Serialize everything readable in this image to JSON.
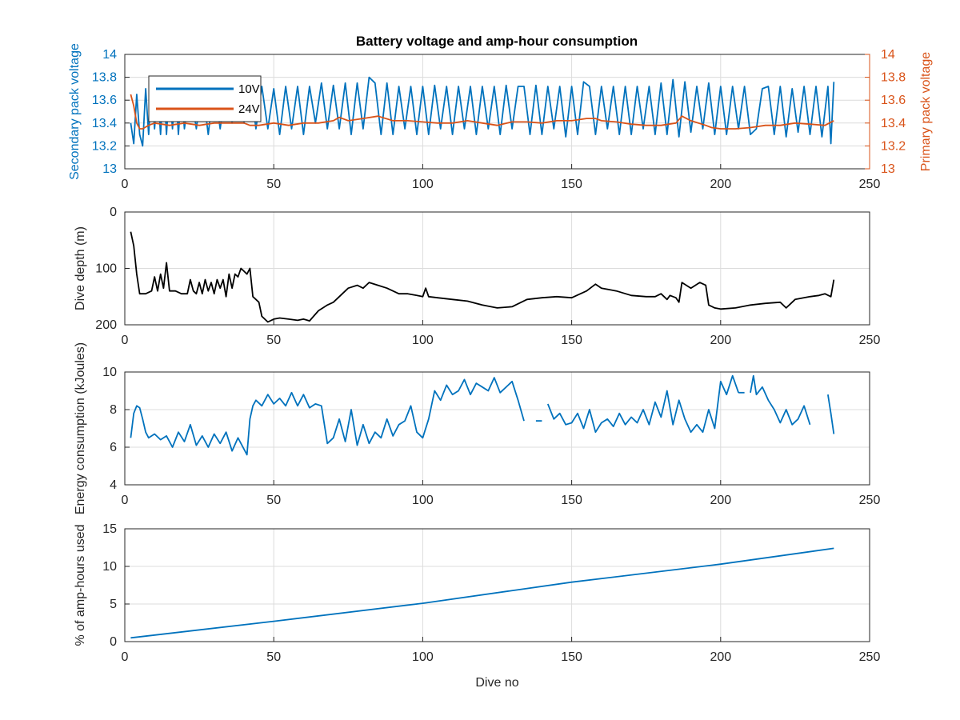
{
  "title": "Battery voltage and amp-hour consumption",
  "colors": {
    "blue": "#0072BD",
    "orange": "#D95319",
    "black": "#000000",
    "grid": "#dcdcdc",
    "axis": "#262626"
  },
  "chart_data": [
    {
      "type": "line",
      "title": "Battery voltage and amp-hour consumption",
      "xlabel": "",
      "ylabel": "Secondary pack voltage",
      "ylabel_right": "Primary pack voltage",
      "xlim": [
        0,
        250
      ],
      "ylim": [
        13,
        14
      ],
      "ylim_right": [
        13,
        14
      ],
      "xticks": [
        0,
        50,
        100,
        150,
        200,
        250
      ],
      "yticks": [
        13,
        13.2,
        13.4,
        13.6,
        13.8,
        14
      ],
      "yticks_right": [
        13,
        13.2,
        13.4,
        13.6,
        13.8,
        14
      ],
      "grid": true,
      "legend": "top-left",
      "series": [
        {
          "name": "10V",
          "axis": "left",
          "color": "#0072BD",
          "x": [
            2,
            3,
            4,
            5,
            6,
            7,
            8,
            9,
            10,
            11,
            12,
            13,
            14,
            15,
            16,
            17,
            18,
            19,
            20,
            22,
            24,
            26,
            28,
            30,
            32,
            34,
            36,
            38,
            40,
            42,
            44,
            46,
            48,
            50,
            52,
            54,
            56,
            58,
            60,
            62,
            64,
            66,
            68,
            70,
            72,
            74,
            76,
            78,
            80,
            82,
            84,
            86,
            88,
            90,
            92,
            94,
            96,
            98,
            100,
            102,
            104,
            106,
            108,
            110,
            112,
            114,
            116,
            118,
            120,
            122,
            124,
            126,
            128,
            130,
            132,
            134,
            136,
            138,
            140,
            142,
            144,
            146,
            148,
            150,
            152,
            154,
            156,
            158,
            160,
            162,
            164,
            166,
            168,
            170,
            172,
            174,
            176,
            178,
            180,
            182,
            184,
            186,
            188,
            190,
            192,
            194,
            196,
            198,
            200,
            202,
            204,
            206,
            208,
            210,
            212,
            214,
            216,
            218,
            220,
            222,
            224,
            226,
            228,
            230,
            232,
            234,
            236,
            237,
            238
          ],
          "values": [
            13.4,
            13.22,
            13.65,
            13.3,
            13.2,
            13.7,
            13.3,
            13.72,
            13.35,
            13.7,
            13.3,
            13.75,
            13.3,
            13.72,
            13.35,
            13.72,
            13.3,
            13.7,
            13.35,
            13.72,
            13.35,
            13.73,
            13.3,
            13.75,
            13.35,
            13.72,
            13.4,
            13.72,
            13.4,
            13.8,
            13.35,
            13.72,
            13.35,
            13.7,
            13.3,
            13.72,
            13.35,
            13.72,
            13.3,
            13.72,
            13.4,
            13.75,
            13.35,
            13.73,
            13.35,
            13.75,
            13.3,
            13.75,
            13.35,
            13.8,
            13.75,
            13.3,
            13.75,
            13.3,
            13.72,
            13.35,
            13.72,
            13.3,
            13.72,
            13.3,
            13.73,
            13.35,
            13.72,
            13.3,
            13.72,
            13.35,
            13.72,
            13.3,
            13.72,
            13.35,
            13.72,
            13.3,
            13.73,
            13.35,
            13.72,
            13.72,
            13.3,
            13.73,
            13.3,
            13.72,
            13.35,
            13.72,
            13.28,
            13.72,
            13.3,
            13.76,
            13.72,
            13.3,
            13.72,
            13.35,
            13.72,
            13.3,
            13.72,
            13.3,
            13.72,
            13.35,
            13.72,
            13.3,
            13.75,
            13.3,
            13.78,
            13.28,
            13.76,
            13.32,
            13.72,
            13.35,
            13.75,
            13.3,
            13.72,
            13.3,
            13.72,
            13.35,
            13.72,
            13.3,
            13.35,
            13.7,
            13.72,
            13.3,
            13.72,
            13.28,
            13.7,
            13.32,
            13.72,
            13.3,
            13.72,
            13.28,
            13.72,
            13.22,
            13.76
          ]
        },
        {
          "name": "24V",
          "axis": "right",
          "color": "#D95319",
          "x": [
            2,
            3,
            4,
            5,
            6,
            8,
            10,
            15,
            20,
            25,
            30,
            35,
            40,
            42,
            45,
            50,
            55,
            60,
            65,
            70,
            72,
            75,
            80,
            85,
            90,
            95,
            100,
            105,
            110,
            115,
            120,
            125,
            130,
            135,
            140,
            145,
            150,
            155,
            158,
            160,
            165,
            170,
            175,
            180,
            185,
            187,
            190,
            195,
            197,
            200,
            205,
            210,
            215,
            220,
            225,
            230,
            235,
            238
          ],
          "values": [
            13.65,
            13.55,
            13.4,
            13.35,
            13.35,
            13.38,
            13.4,
            13.38,
            13.4,
            13.38,
            13.4,
            13.4,
            13.4,
            13.38,
            13.38,
            13.4,
            13.38,
            13.4,
            13.4,
            13.42,
            13.45,
            13.42,
            13.44,
            13.46,
            13.42,
            13.42,
            13.41,
            13.4,
            13.4,
            13.42,
            13.4,
            13.38,
            13.41,
            13.41,
            13.4,
            13.42,
            13.42,
            13.44,
            13.44,
            13.42,
            13.41,
            13.39,
            13.38,
            13.38,
            13.4,
            13.46,
            13.42,
            13.38,
            13.36,
            13.35,
            13.35,
            13.36,
            13.38,
            13.38,
            13.4,
            13.39,
            13.38,
            13.42
          ]
        }
      ]
    },
    {
      "type": "line",
      "xlabel": "",
      "ylabel": "Dive depth (m)",
      "xlim": [
        0,
        250
      ],
      "ylim": [
        0,
        200
      ],
      "y_reversed": true,
      "xticks": [
        0,
        50,
        100,
        150,
        200,
        250
      ],
      "yticks": [
        0,
        100,
        200
      ],
      "grid": true,
      "series": [
        {
          "color": "#000000",
          "x": [
            2,
            3,
            4,
            5,
            7,
            9,
            10,
            11,
            12,
            13,
            14,
            15,
            17,
            19,
            21,
            22,
            23,
            24,
            25,
            26,
            27,
            28,
            29,
            30,
            31,
            32,
            33,
            34,
            35,
            36,
            37,
            38,
            39,
            40,
            41,
            42,
            43,
            44,
            45,
            46,
            48,
            50,
            52,
            55,
            58,
            60,
            62,
            65,
            68,
            70,
            72,
            75,
            78,
            80,
            82,
            85,
            88,
            90,
            92,
            95,
            98,
            100,
            101,
            102,
            105,
            110,
            115,
            120,
            125,
            130,
            135,
            140,
            145,
            150,
            155,
            158,
            160,
            165,
            170,
            175,
            178,
            180,
            182,
            183,
            185,
            186,
            187,
            190,
            193,
            195,
            196,
            198,
            200,
            205,
            210,
            215,
            220,
            222,
            225,
            230,
            233,
            235,
            237,
            238
          ],
          "values": [
            35,
            60,
            110,
            145,
            145,
            140,
            115,
            140,
            110,
            135,
            90,
            140,
            140,
            145,
            145,
            120,
            140,
            145,
            125,
            145,
            120,
            140,
            125,
            145,
            120,
            135,
            120,
            150,
            110,
            135,
            110,
            115,
            100,
            105,
            110,
            100,
            150,
            155,
            160,
            185,
            195,
            190,
            188,
            190,
            192,
            190,
            193,
            175,
            165,
            160,
            150,
            135,
            130,
            135,
            125,
            130,
            135,
            140,
            145,
            145,
            148,
            150,
            135,
            150,
            152,
            155,
            158,
            165,
            170,
            168,
            155,
            152,
            150,
            152,
            140,
            128,
            135,
            140,
            148,
            150,
            150,
            145,
            155,
            148,
            152,
            160,
            125,
            135,
            125,
            130,
            165,
            170,
            172,
            170,
            165,
            162,
            160,
            170,
            155,
            150,
            148,
            145,
            150,
            120
          ]
        }
      ]
    },
    {
      "type": "line",
      "xlabel": "",
      "ylabel": "Energy consumption (kJoules)",
      "xlim": [
        0,
        250
      ],
      "ylim": [
        4,
        10
      ],
      "xticks": [
        0,
        50,
        100,
        150,
        200,
        250
      ],
      "yticks": [
        4,
        6,
        8,
        10
      ],
      "grid": true,
      "series": [
        {
          "color": "#0072BD",
          "segments": [
            {
              "x": [
                2,
                3,
                4,
                5,
                6,
                7,
                8,
                10,
                12,
                14,
                16,
                18,
                20,
                22,
                24,
                26,
                28,
                30,
                32,
                34,
                36,
                38,
                40,
                41,
                42,
                43,
                44,
                46,
                48,
                50,
                52,
                54,
                56,
                58,
                60,
                62,
                64,
                66,
                68,
                70,
                72,
                74,
                76,
                78,
                80,
                82,
                84,
                86,
                88,
                90,
                92,
                94,
                96,
                98,
                100,
                102,
                104,
                106,
                108,
                110,
                112,
                114,
                116,
                118,
                120,
                122,
                124,
                126,
                128,
                130,
                132,
                134
              ],
              "values": [
                6.5,
                7.8,
                8.2,
                8.1,
                7.5,
                6.8,
                6.5,
                6.7,
                6.4,
                6.6,
                6.0,
                6.8,
                6.3,
                7.2,
                6.1,
                6.6,
                6.0,
                6.7,
                6.2,
                6.8,
                5.8,
                6.5,
                5.9,
                5.6,
                7.5,
                8.2,
                8.5,
                8.2,
                8.8,
                8.3,
                8.6,
                8.2,
                8.9,
                8.2,
                8.8,
                8.1,
                8.3,
                8.2,
                6.2,
                6.5,
                7.5,
                6.3,
                8.0,
                6.1,
                7.2,
                6.2,
                6.8,
                6.5,
                7.5,
                6.6,
                7.2,
                7.4,
                8.2,
                6.8,
                6.5,
                7.5,
                9.0,
                8.5,
                9.3,
                8.8,
                9.0,
                9.6,
                8.8,
                9.4,
                9.2,
                9.0,
                9.7,
                8.9,
                9.2,
                9.5,
                8.5,
                7.4
              ]
            },
            {
              "x": [
                138,
                140
              ],
              "values": [
                7.4,
                7.4
              ]
            },
            {
              "x": [
                142,
                144,
                146,
                148,
                150,
                152,
                154,
                156,
                158,
                160,
                162,
                164,
                166,
                168,
                170,
                172,
                174,
                176,
                178,
                180,
                182,
                184,
                186,
                188,
                190,
                192,
                194,
                196,
                198,
                200,
                202,
                204,
                206
              ],
              "values": [
                8.3,
                7.5,
                7.8,
                7.2,
                7.3,
                7.8,
                7.0,
                8.0,
                6.8,
                7.3,
                7.5,
                7.1,
                7.8,
                7.2,
                7.6,
                7.3,
                8.0,
                7.2,
                8.4,
                7.6,
                9.0,
                7.2,
                8.5,
                7.5,
                6.8,
                7.2,
                6.8,
                8.0,
                7.0,
                9.5,
                8.8,
                9.8,
                8.9
              ]
            },
            {
              "x": [
                206,
                208
              ],
              "values": [
                8.9,
                8.9
              ]
            },
            {
              "x": [
                210,
                211,
                212,
                214,
                216,
                218,
                220,
                222,
                224,
                226,
                228,
                230
              ],
              "values": [
                8.9,
                9.8,
                8.8,
                9.2,
                8.5,
                8.0,
                7.3,
                8.0,
                7.2,
                7.5,
                8.2,
                7.2
              ]
            },
            {
              "x": [
                236,
                237,
                238
              ],
              "values": [
                8.8,
                7.8,
                6.7
              ]
            }
          ]
        }
      ]
    },
    {
      "type": "line",
      "xlabel": "Dive no",
      "ylabel": "% of amp-hours used",
      "xlim": [
        0,
        250
      ],
      "ylim": [
        0,
        15
      ],
      "xticks": [
        0,
        50,
        100,
        150,
        200,
        250
      ],
      "yticks": [
        0,
        5,
        10,
        15
      ],
      "grid": true,
      "series": [
        {
          "color": "#0072BD",
          "x": [
            2,
            50,
            100,
            150,
            200,
            238
          ],
          "values": [
            0.5,
            2.7,
            5.1,
            7.9,
            10.3,
            12.4
          ]
        }
      ]
    }
  ]
}
